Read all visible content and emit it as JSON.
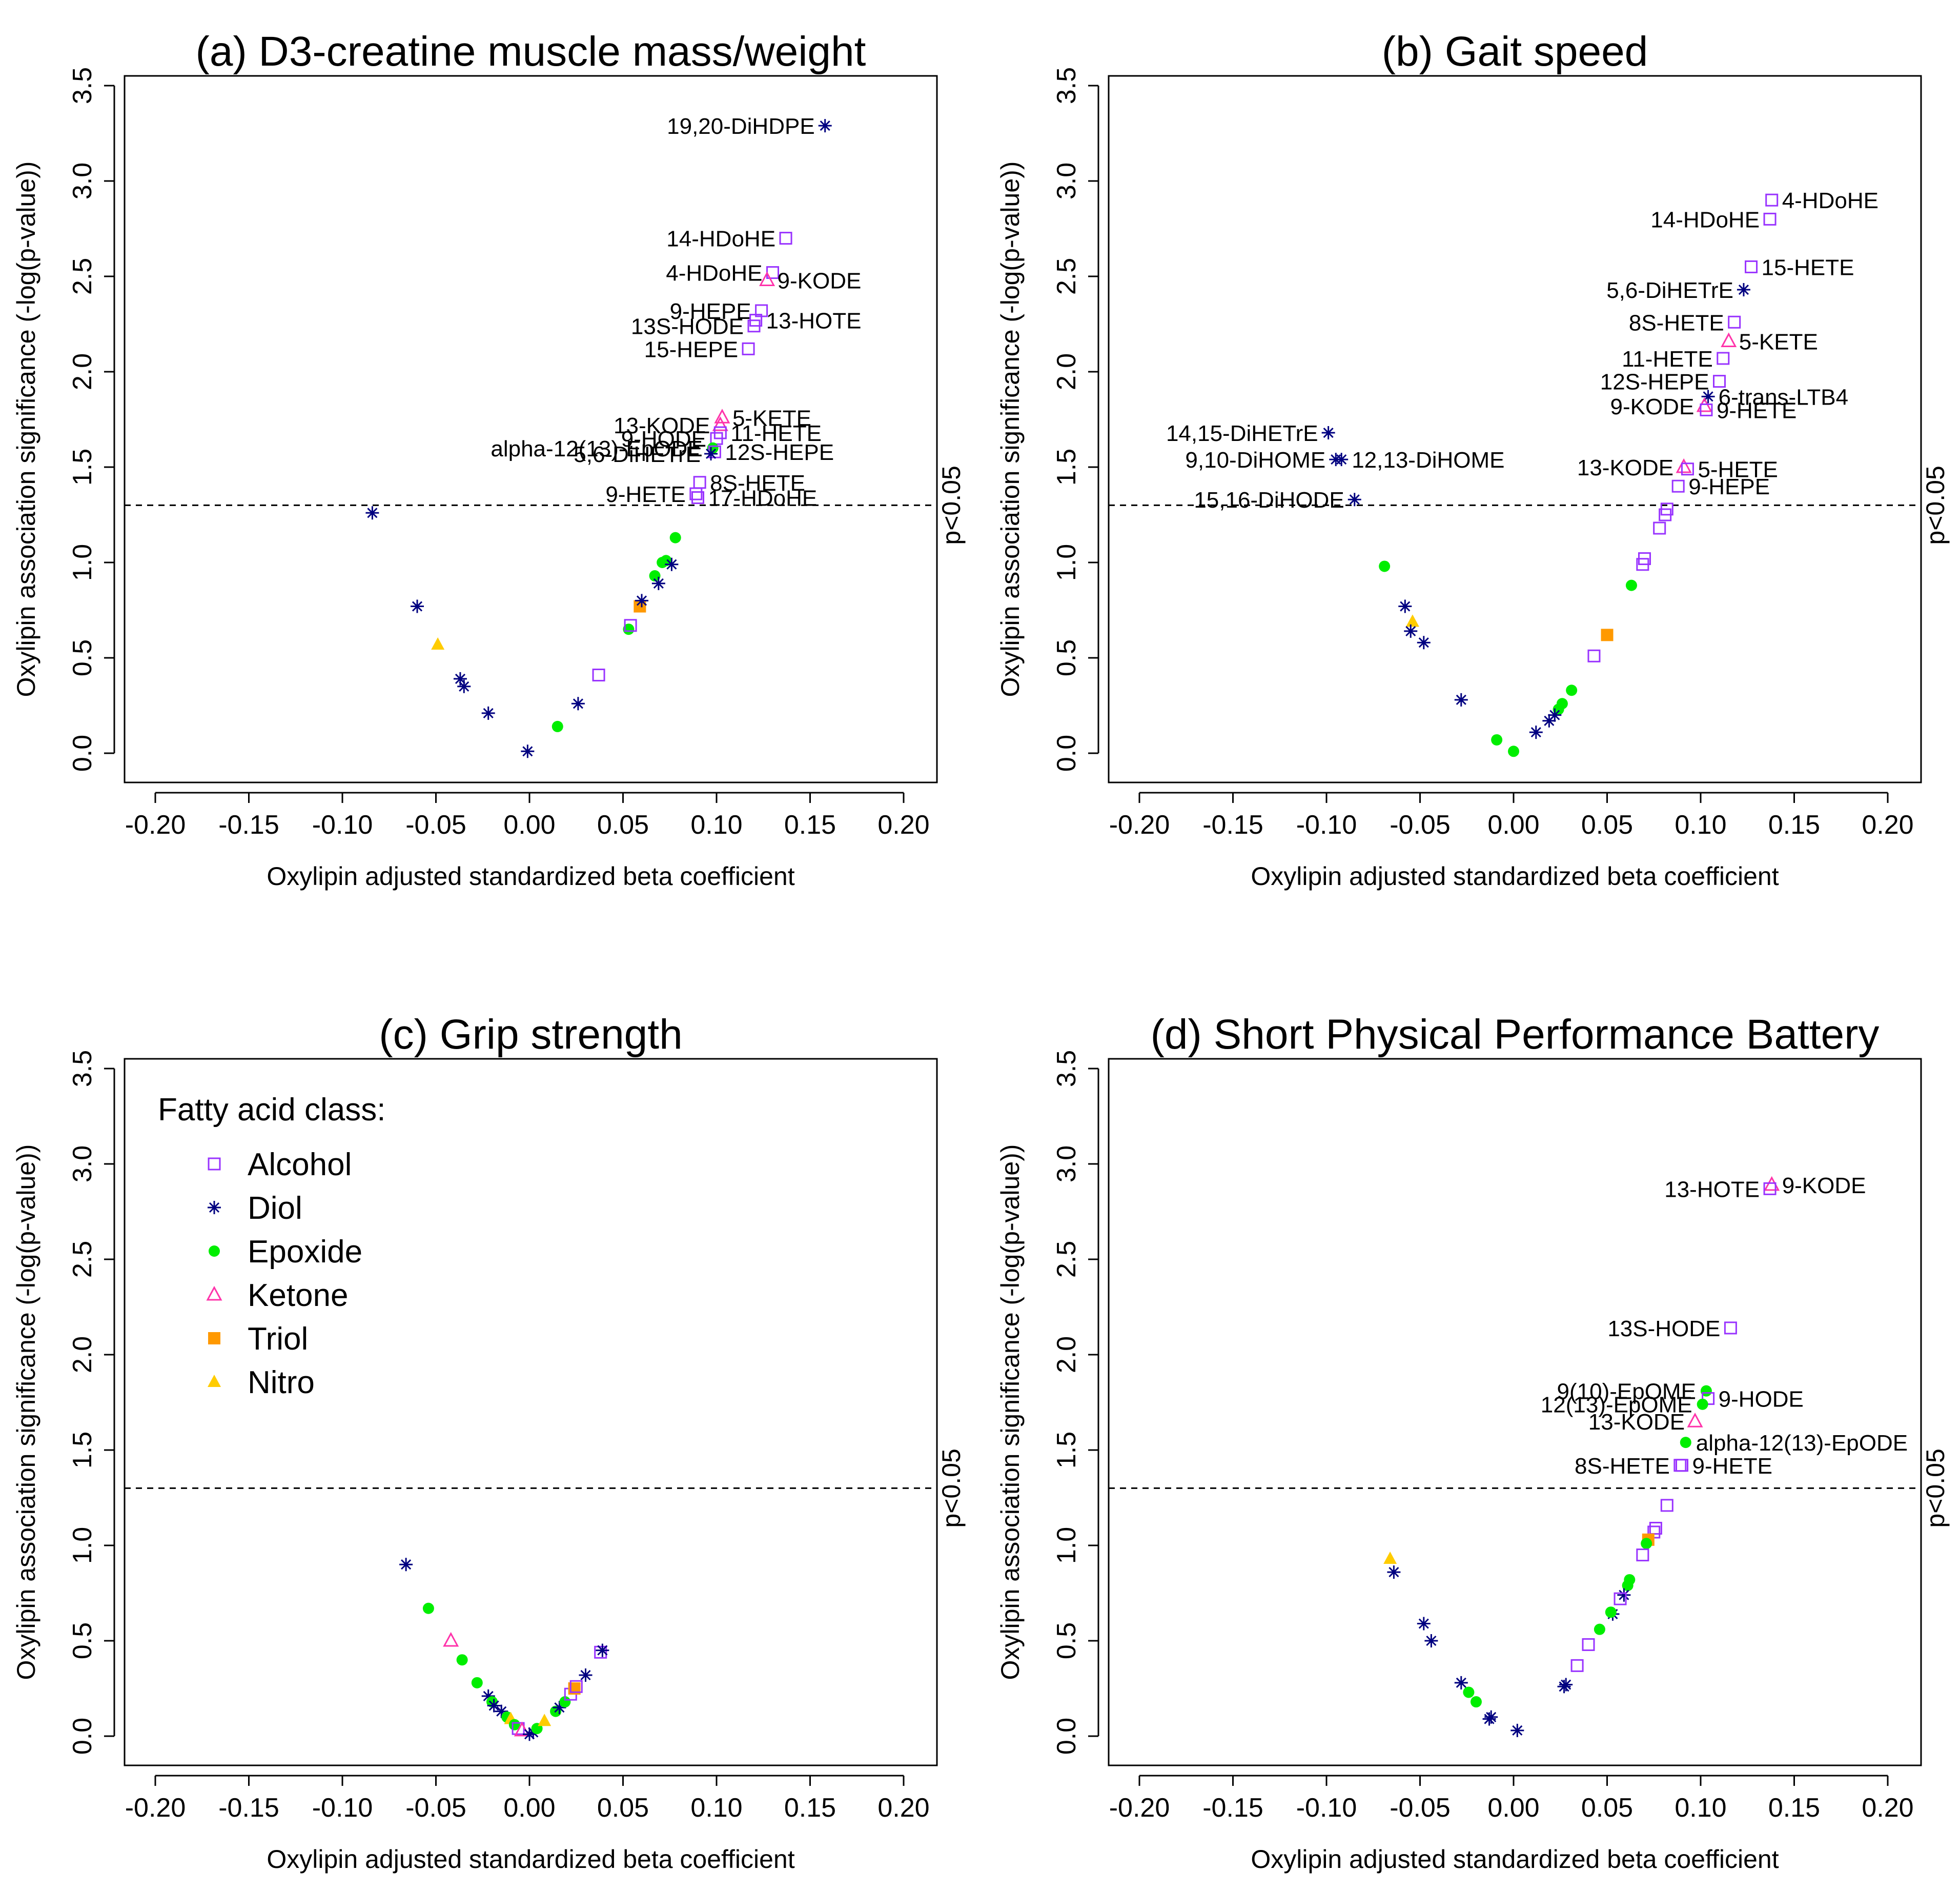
{
  "colors": {
    "Alcohol": "#9933ff",
    "Diol": "#000080",
    "Epoxide": "#00ee00",
    "Ketone": "#ff33aa",
    "Triol": "#ff9900",
    "Nitro": "#ffcc00"
  },
  "legend": {
    "title": "Fatty acid class:",
    "items": [
      {
        "label": "Alcohol",
        "shape": "square-open"
      },
      {
        "label": "Diol",
        "shape": "asterisk"
      },
      {
        "label": "Epoxide",
        "shape": "circle-filled"
      },
      {
        "label": "Ketone",
        "shape": "triangle-open"
      },
      {
        "label": "Triol",
        "shape": "square-filled"
      },
      {
        "label": "Nitro",
        "shape": "triangle-filled"
      }
    ]
  },
  "chart_data": [
    {
      "type": "scatter",
      "title": "(a) D3-creatine muscle mass/weight",
      "xlabel": "Oxylipin adjusted standardized beta coefficient",
      "ylabel": "Oxylipin association significance (-log(p-value))",
      "xlim": [
        -0.2,
        0.2
      ],
      "ylim": [
        0,
        3.5
      ],
      "xticks": [
        "-0.20",
        "-0.15",
        "-0.10",
        "-0.05",
        "0.00",
        "0.05",
        "0.10",
        "0.15",
        "0.20"
      ],
      "yticks": [
        "0.0",
        "0.5",
        "1.0",
        "1.5",
        "2.0",
        "2.5",
        "3.0",
        "3.5"
      ],
      "threshold": {
        "y": 1.3,
        "label": "p<0.05"
      },
      "points": [
        {
          "x": 0.158,
          "y": 3.29,
          "cls": "Diol",
          "label": "19,20-DiHDPE",
          "side": "left"
        },
        {
          "x": 0.137,
          "y": 2.7,
          "cls": "Alcohol",
          "label": "14-HDoHE",
          "side": "left"
        },
        {
          "x": 0.13,
          "y": 2.52,
          "cls": "Alcohol",
          "label": "4-HDoHE",
          "side": "left"
        },
        {
          "x": 0.127,
          "y": 2.48,
          "cls": "Ketone",
          "label": "9-KODE",
          "side": "right"
        },
        {
          "x": 0.124,
          "y": 2.32,
          "cls": "Alcohol",
          "label": "9-HEPE",
          "side": "left"
        },
        {
          "x": 0.121,
          "y": 2.27,
          "cls": "Alcohol",
          "label": "13-HOTE",
          "side": "right"
        },
        {
          "x": 0.12,
          "y": 2.24,
          "cls": "Alcohol",
          "label": "13S-HODE",
          "side": "left"
        },
        {
          "x": 0.117,
          "y": 2.12,
          "cls": "Alcohol",
          "label": "15-HEPE",
          "side": "left"
        },
        {
          "x": 0.103,
          "y": 1.76,
          "cls": "Ketone",
          "label": "5-KETE",
          "side": "right"
        },
        {
          "x": 0.102,
          "y": 1.72,
          "cls": "Ketone",
          "label": "13-KODE",
          "side": "left"
        },
        {
          "x": 0.102,
          "y": 1.68,
          "cls": "Alcohol",
          "label": "11-HETE",
          "side": "right"
        },
        {
          "x": 0.1,
          "y": 1.65,
          "cls": "Alcohol",
          "label": "9-HODE",
          "side": "left"
        },
        {
          "x": 0.098,
          "y": 1.6,
          "cls": "Epoxide",
          "label": "alpha-12(13)-EpODE",
          "side": "left"
        },
        {
          "x": 0.099,
          "y": 1.58,
          "cls": "Alcohol",
          "label": "12S-HEPE",
          "side": "right"
        },
        {
          "x": 0.097,
          "y": 1.57,
          "cls": "Diol",
          "label": "5,6-DiHETrE",
          "side": "left"
        },
        {
          "x": 0.091,
          "y": 1.42,
          "cls": "Alcohol",
          "label": "8S-HETE",
          "side": "right"
        },
        {
          "x": 0.089,
          "y": 1.36,
          "cls": "Alcohol",
          "label": "9-HETE",
          "side": "left"
        },
        {
          "x": 0.09,
          "y": 1.34,
          "cls": "Alcohol",
          "label": "17-HDoHE",
          "side": "right"
        },
        {
          "x": -0.084,
          "y": 1.26,
          "cls": "Diol"
        },
        {
          "x": -0.06,
          "y": 0.77,
          "cls": "Diol"
        },
        {
          "x": -0.049,
          "y": 0.57,
          "cls": "Nitro"
        },
        {
          "x": -0.037,
          "y": 0.39,
          "cls": "Diol"
        },
        {
          "x": -0.035,
          "y": 0.35,
          "cls": "Diol"
        },
        {
          "x": -0.022,
          "y": 0.21,
          "cls": "Diol"
        },
        {
          "x": -0.001,
          "y": 0.01,
          "cls": "Diol"
        },
        {
          "x": 0.015,
          "y": 0.14,
          "cls": "Epoxide"
        },
        {
          "x": 0.026,
          "y": 0.26,
          "cls": "Diol"
        },
        {
          "x": 0.037,
          "y": 0.41,
          "cls": "Alcohol"
        },
        {
          "x": 0.053,
          "y": 0.65,
          "cls": "Epoxide"
        },
        {
          "x": 0.054,
          "y": 0.67,
          "cls": "Alcohol"
        },
        {
          "x": 0.059,
          "y": 0.77,
          "cls": "Triol"
        },
        {
          "x": 0.06,
          "y": 0.8,
          "cls": "Diol"
        },
        {
          "x": 0.067,
          "y": 0.93,
          "cls": "Epoxide"
        },
        {
          "x": 0.069,
          "y": 0.89,
          "cls": "Diol"
        },
        {
          "x": 0.071,
          "y": 1.0,
          "cls": "Epoxide"
        },
        {
          "x": 0.073,
          "y": 1.01,
          "cls": "Epoxide"
        },
        {
          "x": 0.076,
          "y": 0.99,
          "cls": "Diol"
        },
        {
          "x": 0.078,
          "y": 1.13,
          "cls": "Epoxide"
        }
      ]
    },
    {
      "type": "scatter",
      "title": "(b) Gait speed",
      "xlabel": "Oxylipin adjusted standardized beta coefficient",
      "ylabel": "Oxylipin association significance (-log(p-value))",
      "xlim": [
        -0.2,
        0.2
      ],
      "ylim": [
        0,
        3.5
      ],
      "xticks": [
        "-0.20",
        "-0.15",
        "-0.10",
        "-0.05",
        "0.00",
        "0.05",
        "0.10",
        "0.15",
        "0.20"
      ],
      "yticks": [
        "0.0",
        "0.5",
        "1.0",
        "1.5",
        "2.0",
        "2.5",
        "3.0",
        "3.5"
      ],
      "threshold": {
        "y": 1.3,
        "label": "p<0.05"
      },
      "points": [
        {
          "x": 0.138,
          "y": 2.9,
          "cls": "Alcohol",
          "label": "4-HDoHE",
          "side": "right"
        },
        {
          "x": 0.137,
          "y": 2.8,
          "cls": "Alcohol",
          "label": "14-HDoHE",
          "side": "left"
        },
        {
          "x": 0.127,
          "y": 2.55,
          "cls": "Alcohol",
          "label": "15-HETE",
          "side": "right"
        },
        {
          "x": 0.123,
          "y": 2.43,
          "cls": "Diol",
          "label": "5,6-DiHETrE",
          "side": "left"
        },
        {
          "x": 0.118,
          "y": 2.26,
          "cls": "Alcohol",
          "label": "8S-HETE",
          "side": "left"
        },
        {
          "x": 0.115,
          "y": 2.16,
          "cls": "Ketone",
          "label": "5-KETE",
          "side": "right"
        },
        {
          "x": 0.112,
          "y": 2.07,
          "cls": "Alcohol",
          "label": "11-HETE",
          "side": "left"
        },
        {
          "x": 0.11,
          "y": 1.95,
          "cls": "Alcohol",
          "label": "12S-HEPE",
          "side": "left"
        },
        {
          "x": 0.104,
          "y": 1.87,
          "cls": "Diol",
          "label": "6-trans-LTB4",
          "side": "right"
        },
        {
          "x": 0.102,
          "y": 1.82,
          "cls": "Ketone",
          "label": "9-KODE",
          "side": "left"
        },
        {
          "x": 0.103,
          "y": 1.8,
          "cls": "Alcohol",
          "label": "9-HETE",
          "side": "right"
        },
        {
          "x": -0.099,
          "y": 1.68,
          "cls": "Diol",
          "label": "14,15-DiHETrE",
          "side": "left"
        },
        {
          "x": -0.095,
          "y": 1.54,
          "cls": "Diol",
          "label": "9,10-DiHOME",
          "side": "left"
        },
        {
          "x": -0.092,
          "y": 1.54,
          "cls": "Diol",
          "label": "12,13-DiHOME",
          "side": "right"
        },
        {
          "x": 0.091,
          "y": 1.5,
          "cls": "Ketone",
          "label": "13-KODE",
          "side": "left"
        },
        {
          "x": 0.093,
          "y": 1.49,
          "cls": "Alcohol",
          "label": "5-HETE",
          "side": "right"
        },
        {
          "x": 0.088,
          "y": 1.4,
          "cls": "Alcohol",
          "label": "9-HEPE",
          "side": "right"
        },
        {
          "x": -0.085,
          "y": 1.33,
          "cls": "Diol",
          "label": "15,16-DiHODE",
          "side": "left"
        },
        {
          "x": 0.082,
          "y": 1.28,
          "cls": "Alcohol"
        },
        {
          "x": 0.081,
          "y": 1.25,
          "cls": "Alcohol"
        },
        {
          "x": 0.078,
          "y": 1.18,
          "cls": "Alcohol"
        },
        {
          "x": 0.07,
          "y": 1.02,
          "cls": "Alcohol"
        },
        {
          "x": 0.069,
          "y": 0.99,
          "cls": "Alcohol"
        },
        {
          "x": 0.063,
          "y": 0.88,
          "cls": "Epoxide"
        },
        {
          "x": 0.05,
          "y": 0.62,
          "cls": "Triol"
        },
        {
          "x": 0.043,
          "y": 0.51,
          "cls": "Alcohol"
        },
        {
          "x": 0.031,
          "y": 0.33,
          "cls": "Epoxide"
        },
        {
          "x": 0.026,
          "y": 0.26,
          "cls": "Epoxide"
        },
        {
          "x": 0.024,
          "y": 0.23,
          "cls": "Epoxide"
        },
        {
          "x": 0.022,
          "y": 0.2,
          "cls": "Diol"
        },
        {
          "x": 0.019,
          "y": 0.17,
          "cls": "Diol"
        },
        {
          "x": 0.012,
          "y": 0.11,
          "cls": "Diol"
        },
        {
          "x": 0.0,
          "y": 0.01,
          "cls": "Epoxide"
        },
        {
          "x": -0.009,
          "y": 0.07,
          "cls": "Epoxide"
        },
        {
          "x": -0.028,
          "y": 0.28,
          "cls": "Diol"
        },
        {
          "x": -0.048,
          "y": 0.58,
          "cls": "Diol"
        },
        {
          "x": -0.054,
          "y": 0.69,
          "cls": "Nitro"
        },
        {
          "x": -0.055,
          "y": 0.64,
          "cls": "Diol"
        },
        {
          "x": -0.058,
          "y": 0.77,
          "cls": "Diol"
        },
        {
          "x": -0.069,
          "y": 0.98,
          "cls": "Epoxide"
        }
      ]
    },
    {
      "type": "scatter",
      "title": "(c) Grip strength",
      "xlabel": "Oxylipin adjusted standardized beta coefficient",
      "ylabel": "Oxylipin association significance (-log(p-value))",
      "xlim": [
        -0.2,
        0.2
      ],
      "ylim": [
        0,
        3.5
      ],
      "xticks": [
        "-0.20",
        "-0.15",
        "-0.10",
        "-0.05",
        "0.00",
        "0.05",
        "0.10",
        "0.15",
        "0.20"
      ],
      "yticks": [
        "0.0",
        "0.5",
        "1.0",
        "1.5",
        "2.0",
        "2.5",
        "3.0",
        "3.5"
      ],
      "threshold": {
        "y": 1.3,
        "label": "p<0.05"
      },
      "legend_position": "top-left",
      "points": [
        {
          "x": -0.066,
          "y": 0.9,
          "cls": "Diol"
        },
        {
          "x": -0.054,
          "y": 0.67,
          "cls": "Epoxide"
        },
        {
          "x": -0.042,
          "y": 0.5,
          "cls": "Ketone"
        },
        {
          "x": -0.036,
          "y": 0.4,
          "cls": "Epoxide"
        },
        {
          "x": -0.028,
          "y": 0.28,
          "cls": "Epoxide"
        },
        {
          "x": -0.022,
          "y": 0.21,
          "cls": "Diol"
        },
        {
          "x": -0.02,
          "y": 0.18,
          "cls": "Epoxide"
        },
        {
          "x": -0.019,
          "y": 0.16,
          "cls": "Diol"
        },
        {
          "x": -0.015,
          "y": 0.13,
          "cls": "Diol"
        },
        {
          "x": -0.012,
          "y": 0.1,
          "cls": "Epoxide"
        },
        {
          "x": -0.01,
          "y": 0.09,
          "cls": "Nitro"
        },
        {
          "x": -0.008,
          "y": 0.06,
          "cls": "Epoxide"
        },
        {
          "x": -0.006,
          "y": 0.04,
          "cls": "Alcohol"
        },
        {
          "x": -0.004,
          "y": 0.03,
          "cls": "Ketone"
        },
        {
          "x": 0.0,
          "y": 0.01,
          "cls": "Diol"
        },
        {
          "x": 0.002,
          "y": 0.02,
          "cls": "Diol"
        },
        {
          "x": 0.004,
          "y": 0.04,
          "cls": "Epoxide"
        },
        {
          "x": 0.008,
          "y": 0.08,
          "cls": "Nitro"
        },
        {
          "x": 0.014,
          "y": 0.13,
          "cls": "Epoxide"
        },
        {
          "x": 0.016,
          "y": 0.15,
          "cls": "Diol"
        },
        {
          "x": 0.019,
          "y": 0.18,
          "cls": "Epoxide"
        },
        {
          "x": 0.022,
          "y": 0.22,
          "cls": "Alcohol"
        },
        {
          "x": 0.024,
          "y": 0.25,
          "cls": "Triol"
        },
        {
          "x": 0.025,
          "y": 0.26,
          "cls": "Alcohol"
        },
        {
          "x": 0.03,
          "y": 0.32,
          "cls": "Diol"
        },
        {
          "x": 0.038,
          "y": 0.44,
          "cls": "Alcohol"
        },
        {
          "x": 0.039,
          "y": 0.45,
          "cls": "Diol"
        }
      ]
    },
    {
      "type": "scatter",
      "title": "(d) Short Physical Performance Battery",
      "xlabel": "Oxylipin adjusted standardized beta coefficient",
      "ylabel": "Oxylipin association significance (-log(p-value))",
      "xlim": [
        -0.2,
        0.2
      ],
      "ylim": [
        0,
        3.5
      ],
      "xticks": [
        "-0.20",
        "-0.15",
        "-0.10",
        "-0.05",
        "0.00",
        "0.05",
        "0.10",
        "0.15",
        "0.20"
      ],
      "yticks": [
        "0.0",
        "0.5",
        "1.0",
        "1.5",
        "2.0",
        "2.5",
        "3.0",
        "3.5"
      ],
      "threshold": {
        "y": 1.3,
        "label": "p<0.05"
      },
      "points": [
        {
          "x": 0.138,
          "y": 2.89,
          "cls": "Ketone",
          "label": "9-KODE",
          "side": "right"
        },
        {
          "x": 0.137,
          "y": 2.87,
          "cls": "Alcohol",
          "label": "13-HOTE",
          "side": "left"
        },
        {
          "x": 0.116,
          "y": 2.14,
          "cls": "Alcohol",
          "label": "13S-HODE",
          "side": "left"
        },
        {
          "x": 0.103,
          "y": 1.81,
          "cls": "Epoxide",
          "label": "9(10)-EpOME",
          "side": "left"
        },
        {
          "x": 0.104,
          "y": 1.77,
          "cls": "Alcohol",
          "label": "9-HODE",
          "side": "right"
        },
        {
          "x": 0.101,
          "y": 1.74,
          "cls": "Epoxide",
          "label": "12(13)-EpOME",
          "side": "left"
        },
        {
          "x": 0.097,
          "y": 1.65,
          "cls": "Ketone",
          "label": "13-KODE",
          "side": "left"
        },
        {
          "x": 0.092,
          "y": 1.54,
          "cls": "Epoxide",
          "label": "alpha-12(13)-EpODE",
          "side": "right"
        },
        {
          "x": 0.089,
          "y": 1.42,
          "cls": "Alcohol",
          "label": "8S-HETE",
          "side": "left"
        },
        {
          "x": 0.09,
          "y": 1.42,
          "cls": "Alcohol",
          "label": "9-HETE",
          "side": "right"
        },
        {
          "x": 0.082,
          "y": 1.21,
          "cls": "Alcohol"
        },
        {
          "x": 0.076,
          "y": 1.09,
          "cls": "Alcohol"
        },
        {
          "x": 0.075,
          "y": 1.07,
          "cls": "Alcohol"
        },
        {
          "x": 0.072,
          "y": 1.03,
          "cls": "Triol"
        },
        {
          "x": 0.071,
          "y": 1.01,
          "cls": "Epoxide"
        },
        {
          "x": 0.069,
          "y": 0.95,
          "cls": "Alcohol"
        },
        {
          "x": 0.062,
          "y": 0.82,
          "cls": "Epoxide"
        },
        {
          "x": 0.061,
          "y": 0.79,
          "cls": "Epoxide"
        },
        {
          "x": 0.059,
          "y": 0.74,
          "cls": "Diol"
        },
        {
          "x": 0.057,
          "y": 0.72,
          "cls": "Alcohol"
        },
        {
          "x": 0.053,
          "y": 0.64,
          "cls": "Diol"
        },
        {
          "x": 0.052,
          "y": 0.65,
          "cls": "Epoxide"
        },
        {
          "x": 0.046,
          "y": 0.56,
          "cls": "Epoxide"
        },
        {
          "x": 0.04,
          "y": 0.48,
          "cls": "Alcohol"
        },
        {
          "x": 0.034,
          "y": 0.37,
          "cls": "Alcohol"
        },
        {
          "x": 0.028,
          "y": 0.27,
          "cls": "Diol"
        },
        {
          "x": 0.027,
          "y": 0.26,
          "cls": "Diol"
        },
        {
          "x": 0.002,
          "y": 0.03,
          "cls": "Diol"
        },
        {
          "x": -0.012,
          "y": 0.1,
          "cls": "Diol"
        },
        {
          "x": -0.013,
          "y": 0.09,
          "cls": "Diol"
        },
        {
          "x": -0.02,
          "y": 0.18,
          "cls": "Epoxide"
        },
        {
          "x": -0.024,
          "y": 0.23,
          "cls": "Epoxide"
        },
        {
          "x": -0.028,
          "y": 0.28,
          "cls": "Diol"
        },
        {
          "x": -0.044,
          "y": 0.5,
          "cls": "Diol"
        },
        {
          "x": -0.048,
          "y": 0.59,
          "cls": "Diol"
        },
        {
          "x": -0.064,
          "y": 0.86,
          "cls": "Diol"
        },
        {
          "x": -0.066,
          "y": 0.93,
          "cls": "Nitro"
        }
      ]
    }
  ]
}
